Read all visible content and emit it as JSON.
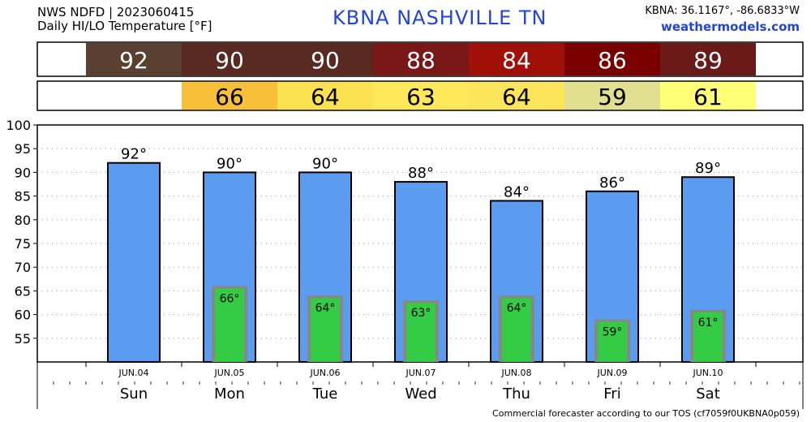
{
  "header": {
    "line1": "NWS NDFD | 2023060415",
    "line2": "Daily HI/LO Temperature [°F]",
    "station_title": "KBNA  NASHVILLE     TN",
    "coords": "KBNA: 36.1167°, -86.6833°W",
    "site": "weathermodels.com"
  },
  "footer": "Commercial forecaster according to our TOS (cf7059f0UKBNA0p059)",
  "colors": {
    "hi_bar": "#5b9bf0",
    "lo_bar": "#33cc44",
    "hi_cells": [
      "#5a4030",
      "#5a2a22",
      "#5a2a22",
      "#7a1818",
      "#a01008",
      "#7a0000",
      "#6a1a18"
    ],
    "lo_cells": [
      "#f8c038",
      "#fbe050",
      "#fde85a",
      "#fce55a",
      "#e0e090",
      "#ffff77"
    ]
  },
  "chart_data": {
    "type": "bar",
    "title": "Daily HI/LO Temperature [°F]",
    "ylim": [
      50,
      100
    ],
    "yticks": [
      55,
      60,
      65,
      70,
      75,
      80,
      85,
      90,
      95,
      100
    ],
    "grid": true,
    "dates": [
      "JUN.04",
      "JUN.05",
      "JUN.06",
      "JUN.07",
      "JUN.08",
      "JUN.09",
      "JUN.10"
    ],
    "categories": [
      "Sun",
      "Mon",
      "Tue",
      "Wed",
      "Thu",
      "Fri",
      "Sat"
    ],
    "series": [
      {
        "values": [
          92,
          90,
          90,
          88,
          84,
          86,
          89
        ],
        "labels": [
          "92°",
          "90°",
          "90°",
          "88°",
          "84°",
          "86°",
          "89°"
        ]
      },
      {
        "values": [
          null,
          66,
          64,
          63,
          64,
          59,
          61
        ],
        "labels": [
          "",
          "66°",
          "64°",
          "63°",
          "64°",
          "59°",
          "61°"
        ]
      }
    ],
    "hi_row": [
      "92",
      "90",
      "90",
      "88",
      "84",
      "86",
      "89"
    ],
    "lo_row": [
      "",
      "66",
      "64",
      "63",
      "64",
      "59",
      "61"
    ]
  }
}
